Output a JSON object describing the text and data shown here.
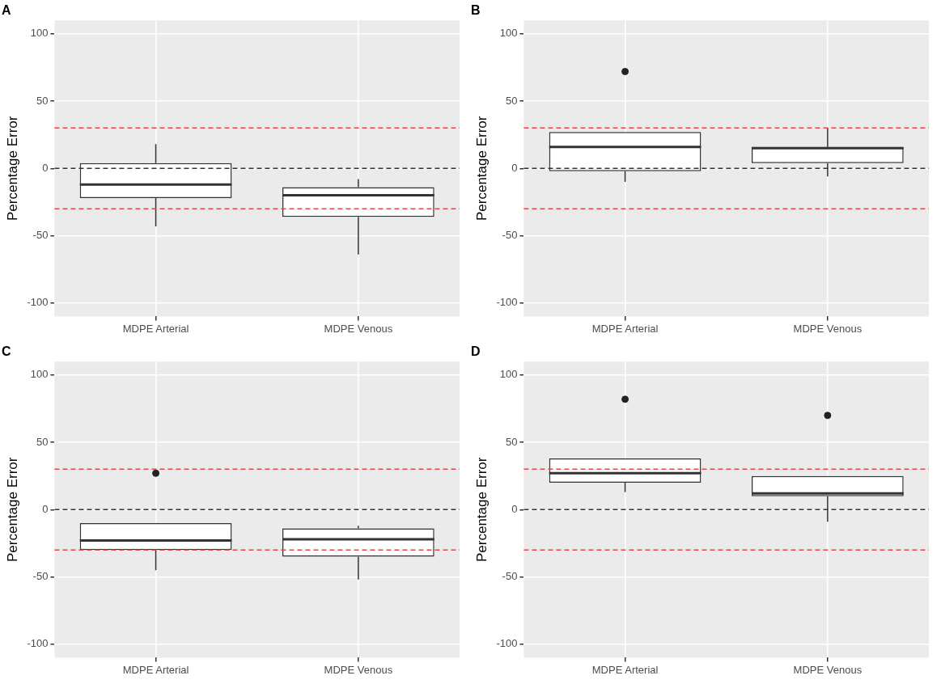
{
  "chart_data": [
    {
      "type": "box",
      "title": "A",
      "ylabel": "Percentage Error",
      "categories": [
        "MDPE Arterial",
        "MDPE Venous"
      ],
      "boxes": [
        {
          "low": -43,
          "q1": -22,
          "median": -12,
          "q3": 4,
          "high": 18
        },
        {
          "low": -64,
          "q1": -36,
          "median": -20,
          "q3": -14,
          "high": -8
        }
      ],
      "ylim": [
        -110,
        110
      ],
      "yticks": [
        -100,
        -50,
        0,
        50,
        100
      ],
      "grid": true,
      "ref_lines": [
        {
          "axis": "y",
          "value": 30,
          "color": "#e0484f",
          "line_style": "dashed"
        },
        {
          "axis": "y",
          "value": 0,
          "color": "#333333",
          "line_style": "dashed"
        },
        {
          "axis": "y",
          "value": -30,
          "color": "#e0484f",
          "line_style": "dashed"
        }
      ]
    },
    {
      "type": "box",
      "title": "B",
      "ylabel": "Percentage Error",
      "categories": [
        "MDPE Arterial",
        "MDPE Venous"
      ],
      "boxes": [
        {
          "low": -10,
          "q1": -2,
          "median": 16,
          "q3": 27,
          "high": 27,
          "outliers": [
            72
          ]
        },
        {
          "low": -6,
          "q1": 4,
          "median": 15,
          "q3": 16,
          "high": 30
        }
      ],
      "ylim": [
        -110,
        110
      ],
      "yticks": [
        -100,
        -50,
        0,
        50,
        100
      ],
      "grid": true,
      "ref_lines": [
        {
          "axis": "y",
          "value": 30,
          "color": "#e0484f",
          "line_style": "dashed"
        },
        {
          "axis": "y",
          "value": 0,
          "color": "#333333",
          "line_style": "dashed"
        },
        {
          "axis": "y",
          "value": -30,
          "color": "#e0484f",
          "line_style": "dashed"
        }
      ]
    },
    {
      "type": "box",
      "title": "C",
      "ylabel": "Percentage Error",
      "categories": [
        "MDPE Arterial",
        "MDPE Venous"
      ],
      "boxes": [
        {
          "low": -45,
          "q1": -30,
          "median": -23,
          "q3": -10,
          "high": -10,
          "outliers": [
            27
          ]
        },
        {
          "low": -52,
          "q1": -35,
          "median": -22,
          "q3": -14,
          "high": -12
        }
      ],
      "ylim": [
        -110,
        110
      ],
      "yticks": [
        -100,
        -50,
        0,
        50,
        100
      ],
      "grid": true,
      "ref_lines": [
        {
          "axis": "y",
          "value": 30,
          "color": "#e0484f",
          "line_style": "dashed"
        },
        {
          "axis": "y",
          "value": 0,
          "color": "#333333",
          "line_style": "dashed"
        },
        {
          "axis": "y",
          "value": -30,
          "color": "#e0484f",
          "line_style": "dashed"
        }
      ]
    },
    {
      "type": "box",
      "title": "D",
      "ylabel": "Percentage Error",
      "categories": [
        "MDPE Arterial",
        "MDPE Venous"
      ],
      "boxes": [
        {
          "low": 13,
          "q1": 20,
          "median": 27,
          "q3": 38,
          "high": 38,
          "outliers": [
            82
          ]
        },
        {
          "low": -9,
          "q1": 10,
          "median": 12,
          "q3": 25,
          "high": 25,
          "outliers": [
            70
          ]
        }
      ],
      "ylim": [
        -110,
        110
      ],
      "yticks": [
        -100,
        -50,
        0,
        50,
        100
      ],
      "grid": true,
      "ref_lines": [
        {
          "axis": "y",
          "value": 30,
          "color": "#e0484f",
          "line_style": "dashed"
        },
        {
          "axis": "y",
          "value": 0,
          "color": "#333333",
          "line_style": "dashed"
        },
        {
          "axis": "y",
          "value": -30,
          "color": "#e0484f",
          "line_style": "dashed"
        }
      ]
    }
  ]
}
